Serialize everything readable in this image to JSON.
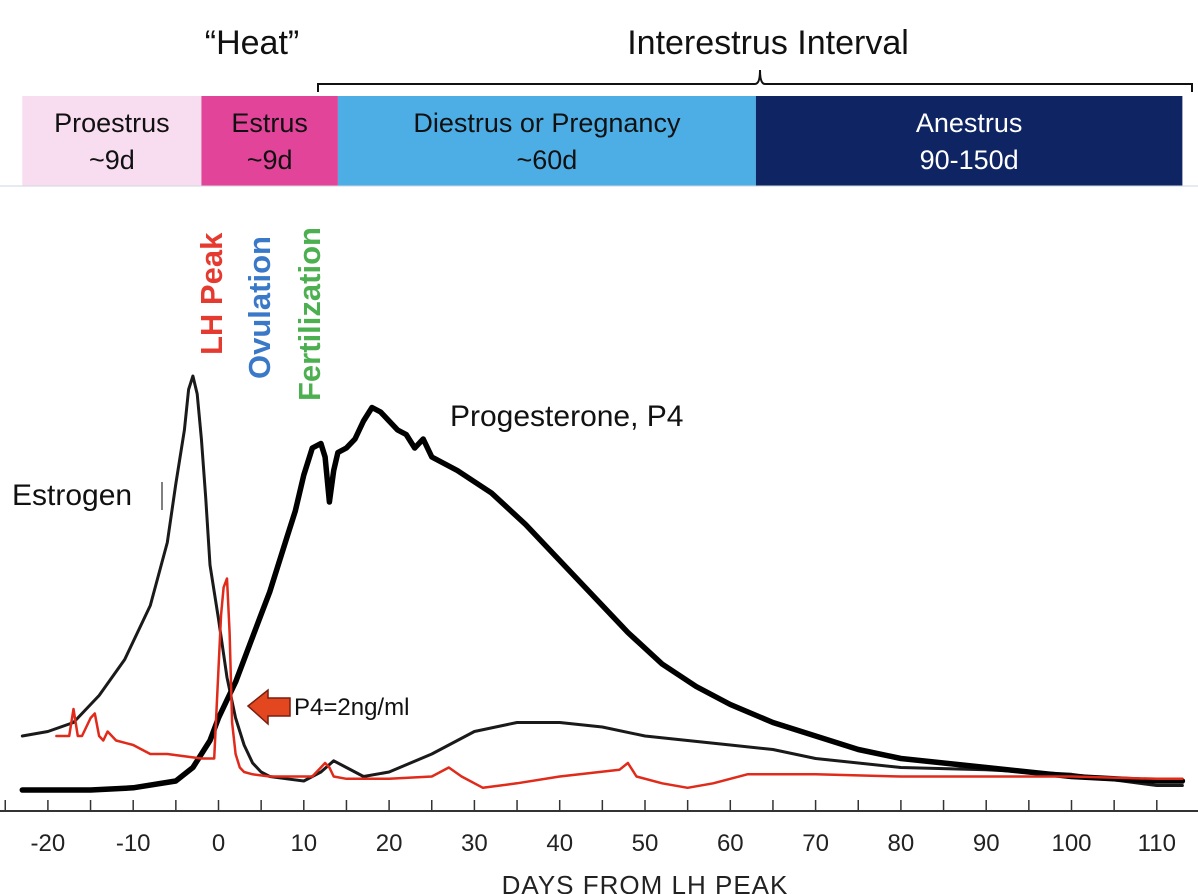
{
  "chart_data": {
    "type": "line",
    "top_labels": {
      "heat": "“Heat”",
      "interestrus": "Interestrus Interval"
    },
    "phases": [
      {
        "name": "Proestrus",
        "duration": "~9d",
        "color": "#f8dcf0",
        "text_color": "#111111",
        "x_start": -23,
        "x_end": -2
      },
      {
        "name": "Estrus",
        "duration": "~9d",
        "color": "#e2449a",
        "text_color": "#111111",
        "x_start": -2,
        "x_end": 14
      },
      {
        "name": "Diestrus or Pregnancy",
        "duration": "~60d",
        "color": "#4daee6",
        "text_color": "#111111",
        "x_start": 14,
        "x_end": 63
      },
      {
        "name": "Anestrus",
        "duration": "90-150d",
        "color": "#0f2563",
        "text_color": "#ffffff",
        "x_start": 63,
        "x_end": 113
      }
    ],
    "event_labels": [
      {
        "text": "LH Peak",
        "color": "#e53a2f",
        "x": 0
      },
      {
        "text": "Ovulation",
        "color": "#3a78c8",
        "x": 4.5
      },
      {
        "text": "Fertilization",
        "color": "#4caf50",
        "x": 10
      }
    ],
    "xlabel": "DAYS FROM LH PEAK",
    "xlim": [
      -23,
      113
    ],
    "ylim": [
      0,
      100
    ],
    "xticks": [
      -20,
      -10,
      0,
      10,
      20,
      30,
      40,
      50,
      60,
      70,
      80,
      90,
      100,
      110
    ],
    "series": [
      {
        "name": "Estrogen",
        "color": "#1a1a1a",
        "x": [
          -23,
          -20,
          -17,
          -14,
          -11,
          -8,
          -6,
          -5,
          -4,
          -3.5,
          -3,
          -2.5,
          -2,
          -1.5,
          -1,
          0,
          1,
          2,
          3,
          4,
          5,
          6,
          8,
          10,
          12,
          13.5,
          15,
          17,
          20,
          25,
          30,
          35,
          40,
          45,
          50,
          55,
          60,
          65,
          70,
          80,
          90,
          100,
          110,
          113
        ],
        "y": [
          12,
          13,
          15,
          21,
          29,
          41,
          55,
          68,
          80,
          89,
          92,
          88,
          78,
          65,
          50,
          38,
          25,
          16,
          10,
          6,
          4,
          3,
          2.5,
          2,
          4,
          6.5,
          5,
          3,
          4,
          8,
          13,
          15,
          15,
          14,
          12,
          11,
          10,
          9,
          7,
          5,
          4.5,
          3.5,
          1,
          1
        ]
      },
      {
        "name": "Progesterone, P4",
        "color": "#000000",
        "x": [
          -23,
          -15,
          -10,
          -5,
          -3,
          -1,
          0,
          1,
          2,
          3,
          4,
          5,
          6,
          7,
          8,
          9,
          10,
          11,
          12,
          12.5,
          13,
          13.5,
          14,
          15,
          16,
          17,
          18,
          19,
          20,
          21,
          22,
          23,
          24,
          25,
          28,
          32,
          36,
          40,
          44,
          48,
          52,
          56,
          60,
          65,
          70,
          75,
          80,
          90,
          100,
          110,
          113
        ],
        "y": [
          0,
          0,
          0.5,
          2,
          5,
          11,
          16,
          20,
          24,
          29,
          34,
          39,
          44,
          50,
          56,
          62,
          70,
          76,
          77,
          74,
          64,
          71,
          75,
          76,
          78,
          82,
          85,
          84,
          82,
          80,
          79,
          76,
          78,
          74,
          71,
          66,
          59,
          51,
          43,
          35,
          28,
          23,
          19,
          15,
          12,
          9,
          7,
          5,
          3,
          2,
          2
        ]
      },
      {
        "name": "LH",
        "color": "#e02a1a",
        "x": [
          -19,
          -17.5,
          -17,
          -16.5,
          -16,
          -15,
          -14.5,
          -14,
          -13.5,
          -13,
          -12,
          -10,
          -9,
          -8,
          -6,
          -4,
          -2,
          -0.5,
          0,
          0.3,
          0.6,
          1,
          1.3,
          1.6,
          2,
          2.5,
          3,
          4,
          6,
          8,
          11,
          12.5,
          13,
          13.5,
          15,
          20,
          25,
          27,
          28.5,
          31,
          35,
          40,
          47,
          48,
          49,
          52,
          55,
          58,
          62,
          70,
          80,
          90,
          100,
          110,
          113
        ],
        "y": [
          12,
          12,
          18,
          12,
          12,
          16,
          17,
          12,
          11,
          13,
          11,
          10,
          9,
          8,
          8,
          7.5,
          7,
          7,
          27,
          39,
          45,
          47,
          35,
          15,
          8,
          5,
          4,
          3.5,
          3,
          3,
          3,
          6,
          5,
          3,
          2.5,
          2.5,
          3,
          5,
          3,
          0.5,
          1.5,
          3,
          4.5,
          6,
          3,
          1.5,
          0.5,
          1.5,
          3.5,
          3.5,
          3,
          3,
          3,
          2.5,
          2.5
        ]
      }
    ],
    "annotations": [
      {
        "text": "Estrogen",
        "series": "Estrogen"
      },
      {
        "text": "Progesterone, P4",
        "series": "Progesterone, P4"
      },
      {
        "text": "P4=2ng/ml",
        "x": 3,
        "y": 20,
        "arrow_color": "#e2471f"
      }
    ]
  }
}
